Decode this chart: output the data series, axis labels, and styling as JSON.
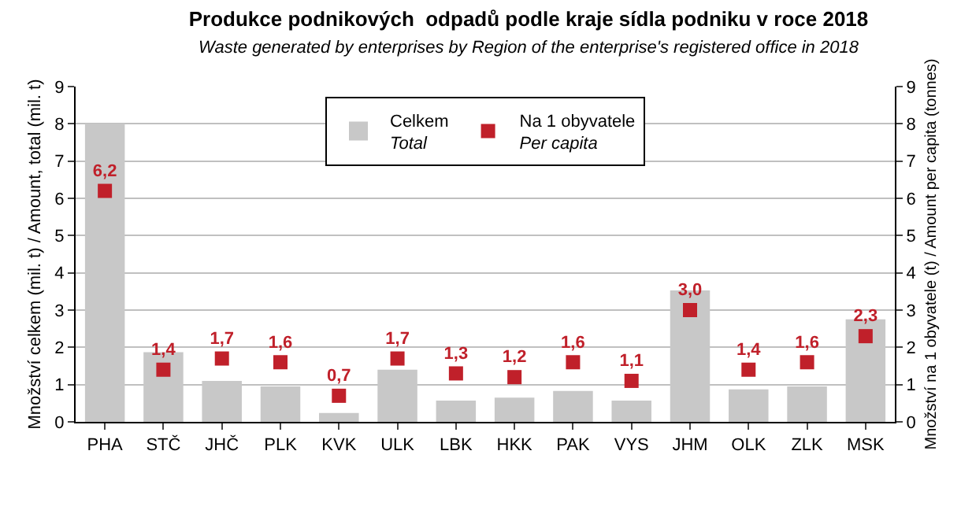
{
  "chart_data": {
    "type": "bar",
    "title": "Produkce podnikových  odpadů podle kraje sídla podniku v roce 2018",
    "subtitle": "Waste generated by enterprises by Region of the enterprise's registered office in 2018",
    "ylabel": "Množství celkem (mil. t) / Amount, total (mil. t)",
    "y2label": "Množství na 1 obyvatele (t) / Amount per capita (tonnes)",
    "categories": [
      "PHA",
      "STČ",
      "JHČ",
      "PLK",
      "KVK",
      "ULK",
      "LBK",
      "HKK",
      "PAK",
      "VYS",
      "JHM",
      "OLK",
      "ZLK",
      "MSK"
    ],
    "series": [
      {
        "name": "Celkem\nTotal",
        "color": "#c8c8c8",
        "values": [
          8.0,
          1.87,
          1.1,
          0.95,
          0.24,
          1.4,
          0.57,
          0.65,
          0.83,
          0.57,
          3.53,
          0.87,
          0.95,
          2.75
        ]
      },
      {
        "name": "Na 1 obyvatele\nPer capita",
        "type": "scatter",
        "axis": "y2",
        "marker": "square",
        "color": "#c0202a",
        "values": [
          6.2,
          1.4,
          1.7,
          1.6,
          0.7,
          1.7,
          1.3,
          1.2,
          1.6,
          1.1,
          3.0,
          1.4,
          1.6,
          2.3
        ],
        "value_labels": [
          "6,2",
          "1,4",
          "1,7",
          "1,6",
          "0,7",
          "1,7",
          "1,3",
          "1,2",
          "1,6",
          "1,1",
          "3,0",
          "1,4",
          "1,6",
          "2,3"
        ]
      }
    ],
    "ylim": [
      0,
      9
    ],
    "yticks": [
      0,
      1,
      2,
      3,
      4,
      5,
      6,
      7,
      8,
      9
    ],
    "y2lim": [
      0,
      9
    ],
    "y2ticks": [
      0,
      1,
      2,
      3,
      4,
      5,
      6,
      7,
      8,
      9
    ],
    "grid": "y",
    "legend": "top"
  }
}
